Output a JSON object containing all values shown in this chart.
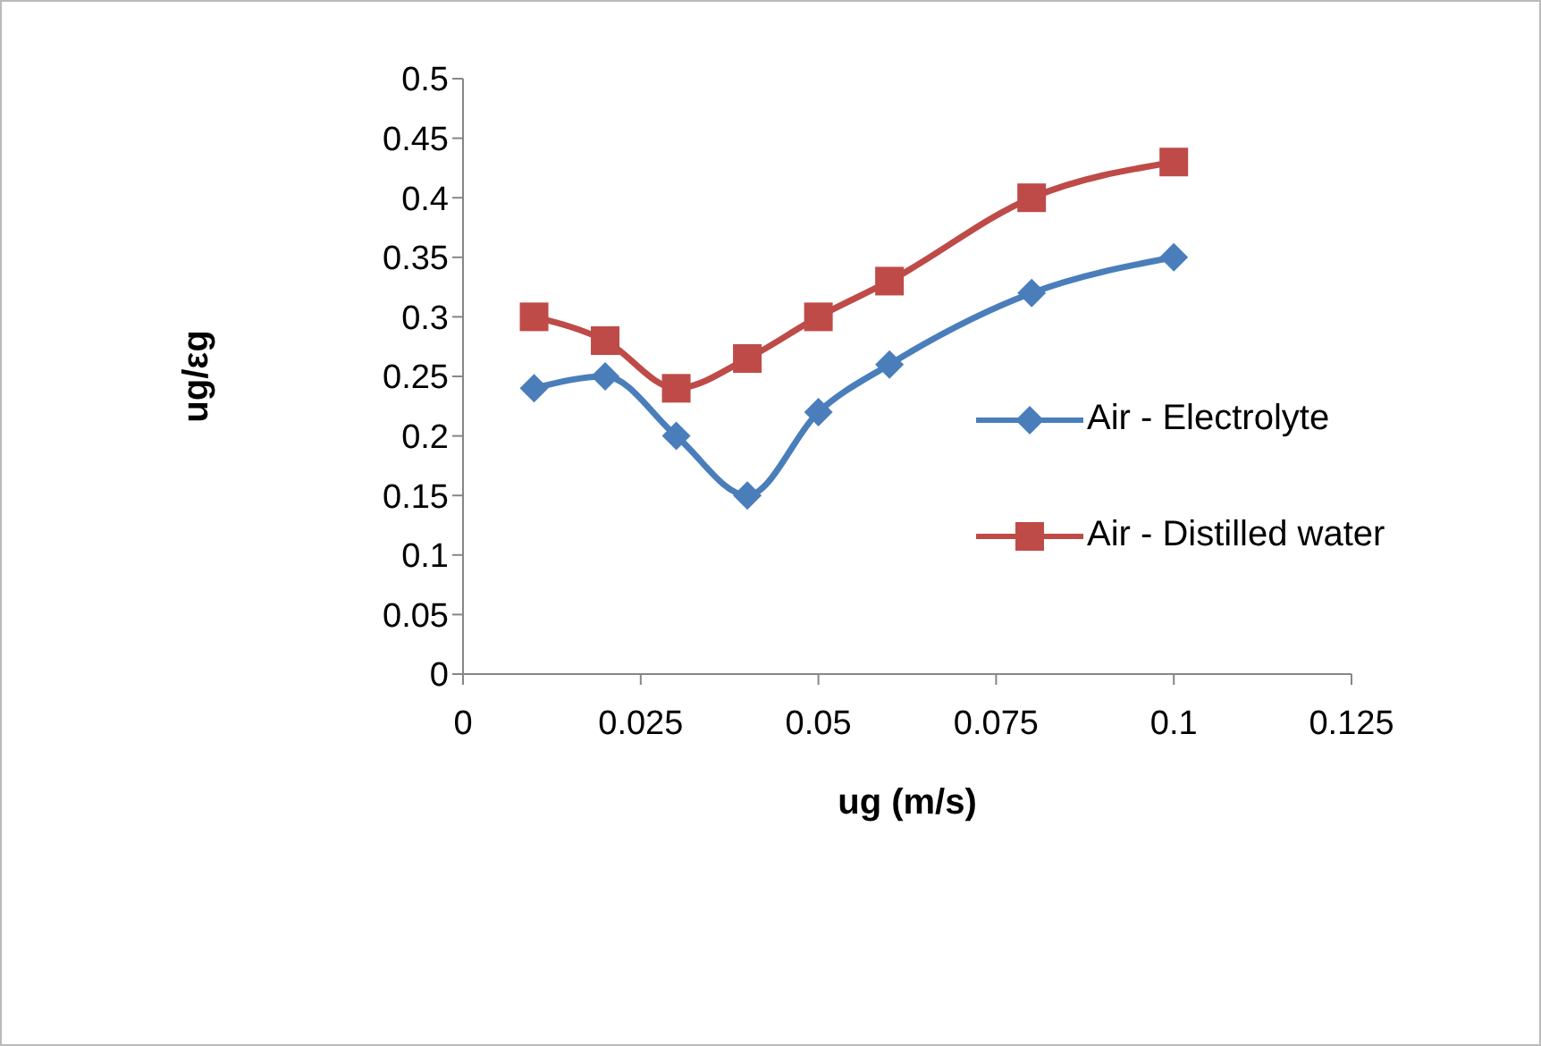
{
  "chart_data": {
    "type": "line",
    "xlabel": "ug (m/s)",
    "ylabel": "ug/εg",
    "xlim": [
      0,
      0.125
    ],
    "xticks": [
      0,
      0.025,
      0.05,
      0.075,
      0.1,
      0.125
    ],
    "ylim": [
      0,
      0.5
    ],
    "yticks": [
      0,
      0.05,
      0.1,
      0.15,
      0.2,
      0.25,
      0.3,
      0.35,
      0.4,
      0.45,
      0.5
    ],
    "grid": false,
    "legend": "right",
    "x": [
      0.01,
      0.02,
      0.03,
      0.04,
      0.05,
      0.06,
      0.08,
      0.1
    ],
    "series": [
      {
        "name": "Air - Electrolyte",
        "color": "#4a7ebb",
        "marker": "diamond",
        "values": [
          0.24,
          0.25,
          0.2,
          0.15,
          0.22,
          0.26,
          0.32,
          0.35
        ]
      },
      {
        "name": "Air - Distilled water",
        "color": "#be4b48",
        "marker": "square",
        "values": [
          0.3,
          0.28,
          0.24,
          0.265,
          0.3,
          0.33,
          0.4,
          0.43
        ]
      }
    ]
  }
}
